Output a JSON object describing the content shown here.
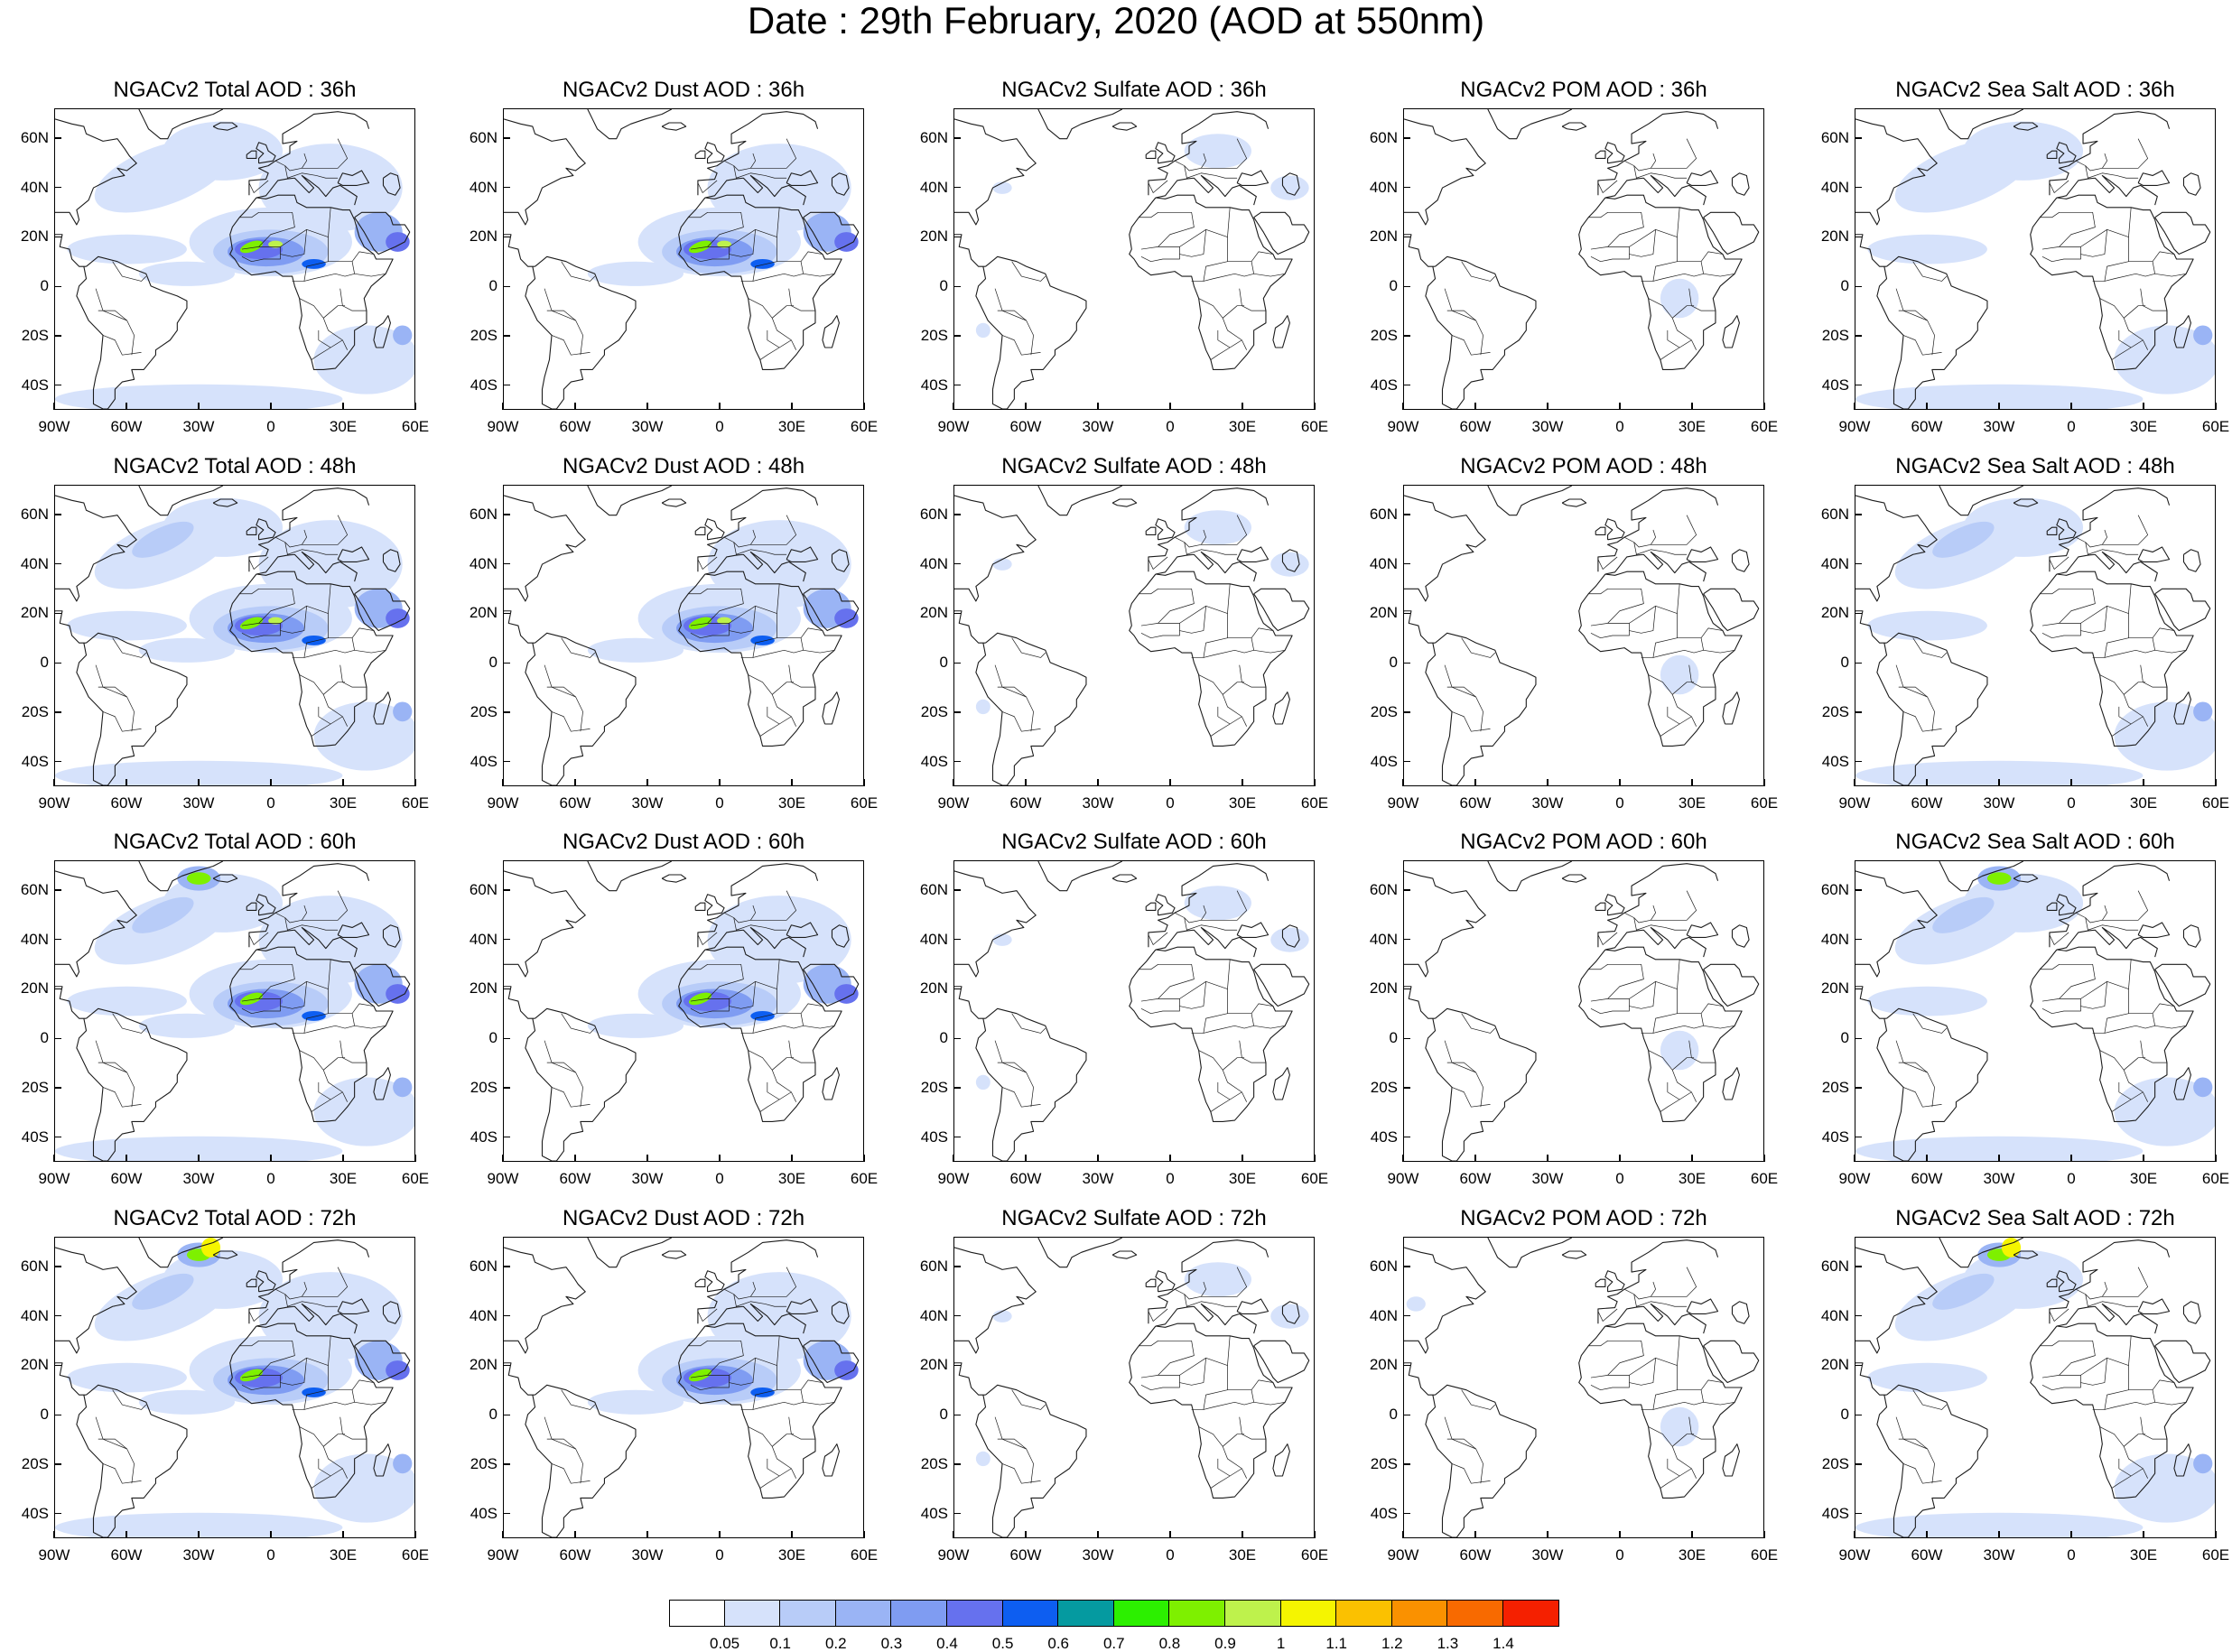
{
  "title": "Date : 29th February, 2020 (AOD at 550nm)",
  "latitude_labels": [
    "60N",
    "40N",
    "20N",
    "0",
    "20S",
    "40S"
  ],
  "longitude_labels": [
    "90W",
    "60W",
    "30W",
    "0",
    "30E",
    "60E"
  ],
  "panels": [
    [
      {
        "title": "NGACv2 Total AOD : 36h",
        "field": "total"
      },
      {
        "title": "NGACv2 Dust AOD : 36h",
        "field": "dust"
      },
      {
        "title": "NGACv2 Sulfate AOD : 36h",
        "field": "sulfate"
      },
      {
        "title": "NGACv2 POM AOD : 36h",
        "field": "pom"
      },
      {
        "title": "NGACv2 Sea Salt AOD : 36h",
        "field": "seasalt"
      }
    ],
    [
      {
        "title": "NGACv2 Total AOD : 48h",
        "field": "total"
      },
      {
        "title": "NGACv2 Dust AOD : 48h",
        "field": "dust"
      },
      {
        "title": "NGACv2 Sulfate AOD : 48h",
        "field": "sulfate"
      },
      {
        "title": "NGACv2 POM AOD : 48h",
        "field": "pom"
      },
      {
        "title": "NGACv2 Sea Salt AOD : 48h",
        "field": "seasalt"
      }
    ],
    [
      {
        "title": "NGACv2 Total AOD : 60h",
        "field": "total"
      },
      {
        "title": "NGACv2 Dust AOD : 60h",
        "field": "dust"
      },
      {
        "title": "NGACv2 Sulfate AOD : 60h",
        "field": "sulfate"
      },
      {
        "title": "NGACv2 POM AOD : 60h",
        "field": "pom"
      },
      {
        "title": "NGACv2 Sea Salt AOD : 60h",
        "field": "seasalt"
      }
    ],
    [
      {
        "title": "NGACv2 Total AOD : 72h",
        "field": "total"
      },
      {
        "title": "NGACv2 Dust AOD : 72h",
        "field": "dust"
      },
      {
        "title": "NGACv2 Sulfate AOD : 72h",
        "field": "sulfate"
      },
      {
        "title": "NGACv2 POM AOD : 72h",
        "field": "pom"
      },
      {
        "title": "NGACv2 Sea Salt  AOD : 72h",
        "field": "seasalt"
      }
    ]
  ],
  "colorbar": {
    "labels": [
      "0.05",
      "0.1",
      "0.2",
      "0.3",
      "0.4",
      "0.5",
      "0.6",
      "0.7",
      "0.8",
      "0.9",
      "1",
      "1.1",
      "1.2",
      "1.3",
      "1.4"
    ],
    "colors": [
      "#ffffff",
      "#d6e2fb",
      "#b8ccf8",
      "#9ab4f5",
      "#7f9cf2",
      "#6671ee",
      "#0d5ef1",
      "#059aa0",
      "#2cf000",
      "#7ef000",
      "#bef24c",
      "#f5f500",
      "#fbc100",
      "#fa9100",
      "#f86a00",
      "#f52000"
    ]
  }
}
